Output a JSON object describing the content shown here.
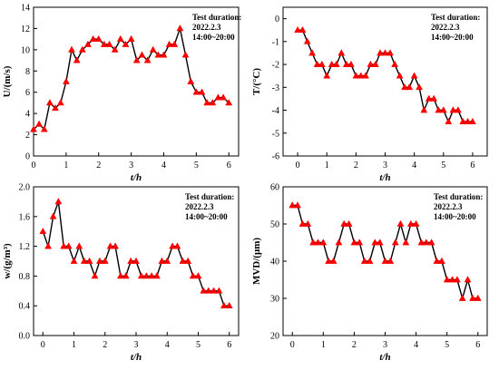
{
  "chart_data": [
    {
      "type": "line",
      "xlabel": "t/h",
      "ylabel": "U/(m/s)",
      "xlim": [
        0,
        6.3
      ],
      "ylim": [
        0,
        14
      ],
      "xticks": [
        0,
        1,
        2,
        3,
        4,
        5,
        6
      ],
      "yticks": [
        0,
        2,
        4,
        6,
        8,
        10,
        12,
        14
      ],
      "annotation": [
        "Test duration:",
        "2022.2.3",
        "14:00~20:00"
      ],
      "series": [
        {
          "color": "#ff0000",
          "x": [
            0,
            0.17,
            0.33,
            0.5,
            0.67,
            0.83,
            1.0,
            1.17,
            1.33,
            1.5,
            1.67,
            1.83,
            2.0,
            2.17,
            2.33,
            2.5,
            2.67,
            2.83,
            3.0,
            3.17,
            3.33,
            3.5,
            3.67,
            3.83,
            4.0,
            4.17,
            4.33,
            4.5,
            4.67,
            4.83,
            5.0,
            5.17,
            5.33,
            5.5,
            5.67,
            5.83,
            6.0
          ],
          "y": [
            2.5,
            3.0,
            2.5,
            5.0,
            4.5,
            5.0,
            7.0,
            10.0,
            9.0,
            10.0,
            10.5,
            11.0,
            11.0,
            10.5,
            10.5,
            10.0,
            11.0,
            10.5,
            11.0,
            9.0,
            9.5,
            9.0,
            10.0,
            9.5,
            9.5,
            10.5,
            10.5,
            12.0,
            9.5,
            7.0,
            6.0,
            6.0,
            5.0,
            5.0,
            5.5,
            5.5,
            5.0
          ]
        }
      ]
    },
    {
      "type": "line",
      "xlabel": "t/h",
      "ylabel": "T/(°C)",
      "xlim": [
        -0.5,
        6.5
      ],
      "ylim": [
        -6,
        0.5
      ],
      "xticks": [
        0,
        1,
        2,
        3,
        4,
        5,
        6
      ],
      "yticks": [
        0,
        -1,
        -2,
        -3,
        -4,
        -5,
        -6
      ],
      "annotation": [
        "Test duration:",
        "2022.2.3",
        "14:00~20:00"
      ],
      "series": [
        {
          "color": "#ff0000",
          "x": [
            0,
            0.17,
            0.33,
            0.5,
            0.67,
            0.83,
            1.0,
            1.17,
            1.33,
            1.5,
            1.67,
            1.83,
            2.0,
            2.17,
            2.33,
            2.5,
            2.67,
            2.83,
            3.0,
            3.17,
            3.33,
            3.5,
            3.67,
            3.83,
            4.0,
            4.17,
            4.33,
            4.5,
            4.67,
            4.83,
            5.0,
            5.17,
            5.33,
            5.5,
            5.67,
            5.83,
            6.0
          ],
          "y": [
            -0.5,
            -0.5,
            -1.0,
            -1.5,
            -2.0,
            -2.0,
            -2.5,
            -2.0,
            -2.0,
            -1.5,
            -2.0,
            -2.0,
            -2.5,
            -2.5,
            -2.5,
            -2.0,
            -2.0,
            -1.5,
            -1.5,
            -1.5,
            -2.0,
            -2.5,
            -3.0,
            -3.0,
            -2.5,
            -3.0,
            -4.0,
            -3.5,
            -3.5,
            -4.0,
            -4.0,
            -4.5,
            -4.0,
            -4.0,
            -4.5,
            -4.5,
            -4.5
          ]
        }
      ]
    },
    {
      "type": "line",
      "xlabel": "t/h",
      "ylabel": "w/(g/m³)",
      "xlim": [
        -0.3,
        6.3
      ],
      "ylim": [
        0,
        2.0
      ],
      "xticks": [
        0,
        1,
        2,
        3,
        4,
        5,
        6
      ],
      "yticks": [
        0.0,
        0.4,
        0.8,
        1.2,
        1.6,
        2.0
      ],
      "annotation": [
        "Test duration:",
        "2022.2.3",
        "14:00~20:00"
      ],
      "series": [
        {
          "color": "#ff0000",
          "x": [
            0,
            0.17,
            0.33,
            0.5,
            0.67,
            0.83,
            1.0,
            1.17,
            1.33,
            1.5,
            1.67,
            1.83,
            2.0,
            2.17,
            2.33,
            2.5,
            2.67,
            2.83,
            3.0,
            3.17,
            3.33,
            3.5,
            3.67,
            3.83,
            4.0,
            4.17,
            4.33,
            4.5,
            4.67,
            4.83,
            5.0,
            5.17,
            5.33,
            5.5,
            5.67,
            5.83,
            6.0
          ],
          "y": [
            1.4,
            1.2,
            1.6,
            1.8,
            1.2,
            1.2,
            1.0,
            1.2,
            1.0,
            1.0,
            0.8,
            1.0,
            1.0,
            1.2,
            1.2,
            0.8,
            0.8,
            1.0,
            1.0,
            0.8,
            0.8,
            0.8,
            0.8,
            1.0,
            1.0,
            1.2,
            1.2,
            1.0,
            1.0,
            0.8,
            0.8,
            0.6,
            0.6,
            0.6,
            0.6,
            0.4,
            0.4
          ]
        }
      ]
    },
    {
      "type": "line",
      "xlabel": "t/h",
      "ylabel": "MVD/(μm)",
      "xlim": [
        -0.3,
        6.3
      ],
      "ylim": [
        20,
        60
      ],
      "xticks": [
        0,
        1,
        2,
        3,
        4,
        5,
        6
      ],
      "yticks": [
        20,
        30,
        40,
        50,
        60
      ],
      "annotation": [
        "Test duration:",
        "2022.2.3",
        "14:00~20:00"
      ],
      "series": [
        {
          "color": "#ff0000",
          "x": [
            0,
            0.17,
            0.33,
            0.5,
            0.67,
            0.83,
            1.0,
            1.17,
            1.33,
            1.5,
            1.67,
            1.83,
            2.0,
            2.17,
            2.33,
            2.5,
            2.67,
            2.83,
            3.0,
            3.17,
            3.33,
            3.5,
            3.67,
            3.83,
            4.0,
            4.17,
            4.33,
            4.5,
            4.67,
            4.83,
            5.0,
            5.17,
            5.33,
            5.5,
            5.67,
            5.83,
            6.0
          ],
          "y": [
            55,
            55,
            50,
            50,
            45,
            45,
            45,
            40,
            40,
            45,
            50,
            50,
            45,
            45,
            40,
            40,
            45,
            45,
            40,
            40,
            45,
            50,
            45,
            50,
            50,
            45,
            45,
            45,
            40,
            40,
            35,
            35,
            35,
            30,
            35,
            30,
            30
          ]
        }
      ]
    }
  ]
}
